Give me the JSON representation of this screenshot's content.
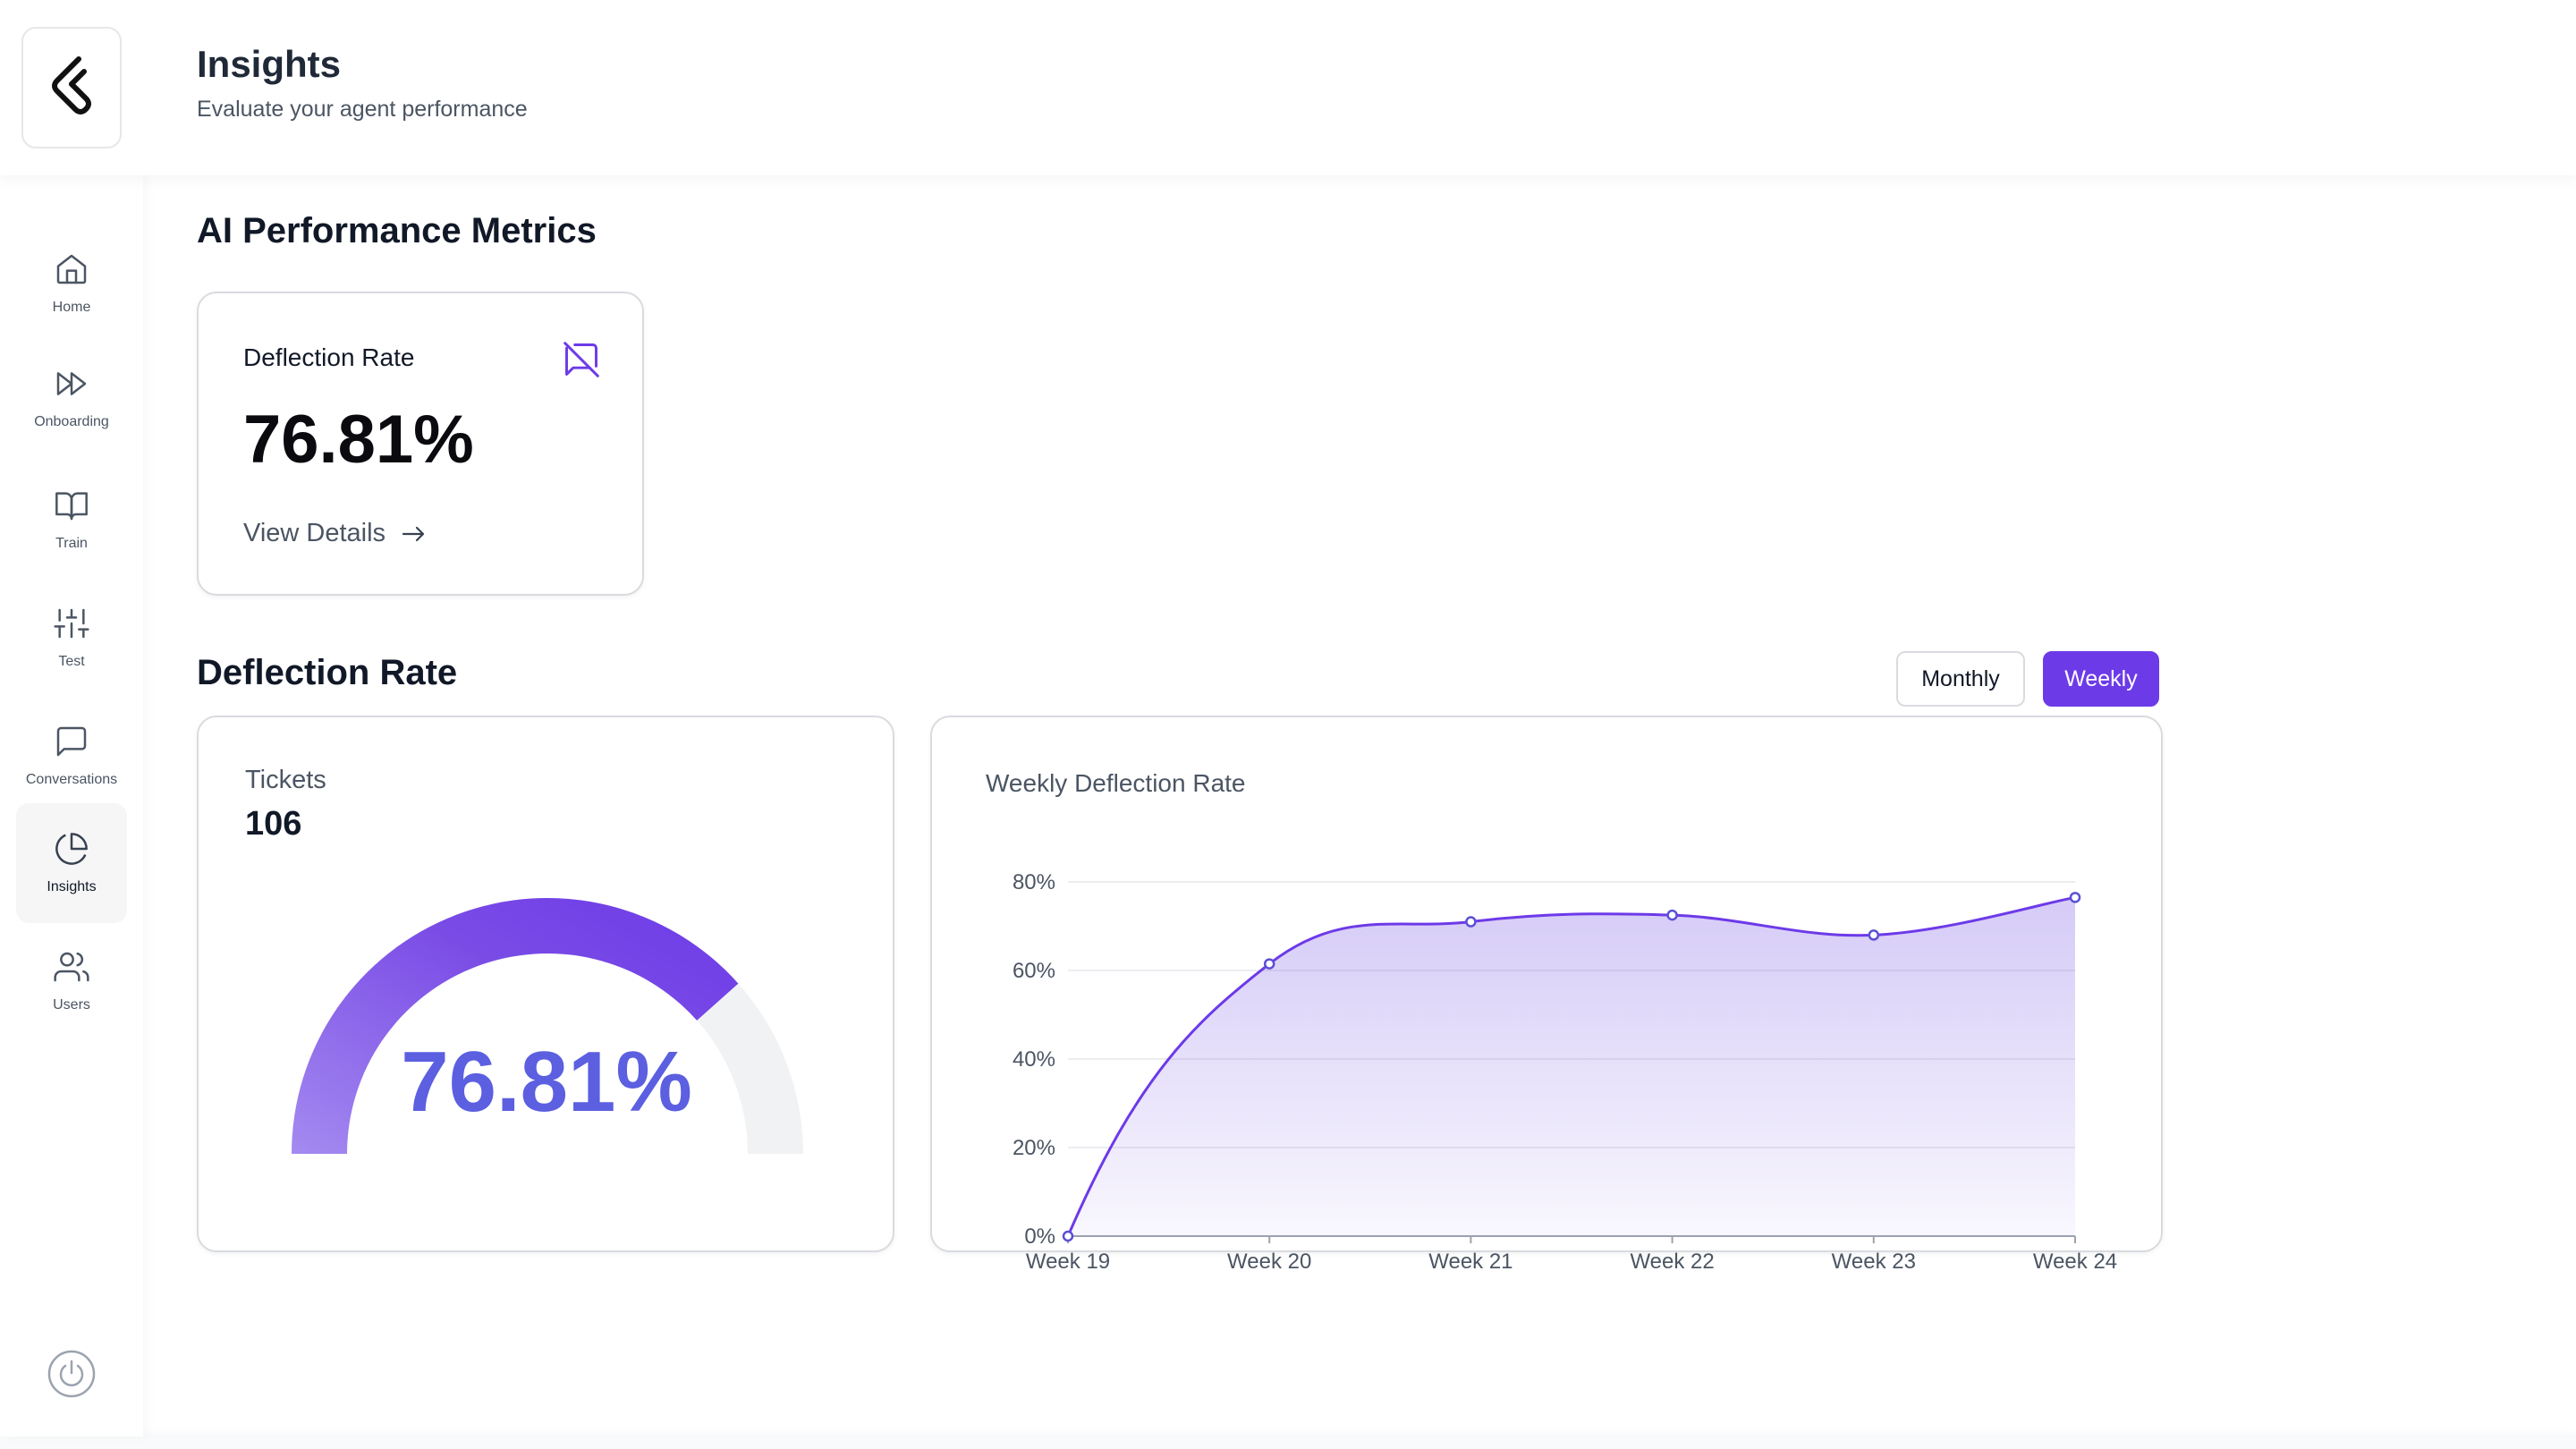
{
  "header": {
    "title": "Insights",
    "subtitle": "Evaluate your agent performance"
  },
  "sidebar": {
    "items": [
      {
        "label": "Home",
        "icon": "home-icon"
      },
      {
        "label": "Onboarding",
        "icon": "fast-forward-icon"
      },
      {
        "label": "Train",
        "icon": "book-open-icon"
      },
      {
        "label": "Test",
        "icon": "sliders-icon"
      },
      {
        "label": "Conversations",
        "icon": "message-square-icon"
      },
      {
        "label": "Insights",
        "icon": "pie-chart-icon",
        "active": true
      },
      {
        "label": "Users",
        "icon": "users-icon"
      }
    ],
    "footer_icon": "power-icon"
  },
  "main": {
    "metrics_title": "AI Performance Metrics",
    "metric_card": {
      "label": "Deflection Rate",
      "value": "76.81%",
      "link": "View Details",
      "icon": "message-off-icon"
    },
    "deflection_title": "Deflection Rate",
    "toggle": {
      "monthly": "Monthly",
      "weekly": "Weekly",
      "selected": "Weekly"
    },
    "gauge": {
      "tickets_label": "Tickets",
      "tickets_value": "106",
      "value_label": "76.81%",
      "fraction": 0.7681
    }
  },
  "colors": {
    "accent": "#6d3ae8",
    "gauge_value": "#5b5fe0",
    "track": "#f1f2f4"
  },
  "chart_data": {
    "type": "area",
    "title": "Weekly Deflection Rate",
    "categories": [
      "Week 19",
      "Week 20",
      "Week 21",
      "Week 22",
      "Week 23",
      "Week 24"
    ],
    "values": [
      0,
      61.5,
      71,
      72.5,
      68,
      76.5
    ],
    "yticks": [
      "0%",
      "20%",
      "40%",
      "60%",
      "80%"
    ],
    "ylim": [
      0,
      80
    ],
    "grid": true
  }
}
